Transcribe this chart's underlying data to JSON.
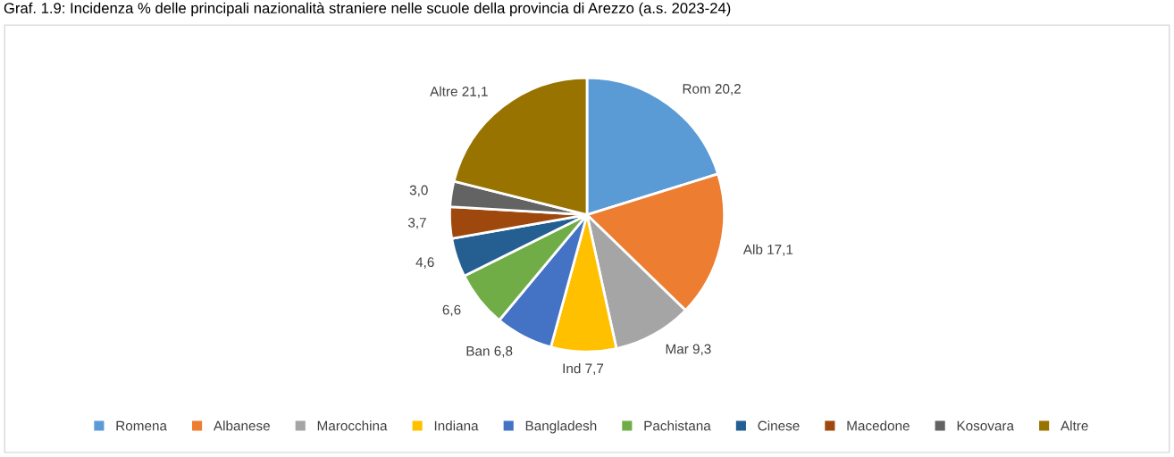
{
  "chart_data": {
    "type": "pie",
    "title": "Graf. 1.9: Incidenza % delle principali nazionalità straniere nelle scuole della provincia di Arezzo (a.s. 2023-24)",
    "categories": [
      "Romena",
      "Albanese",
      "Marocchina",
      "Indiana",
      "Bangladesh",
      "Pachistana",
      "Cinese",
      "Macedone",
      "Kosovara",
      "Altre"
    ],
    "values": [
      20.2,
      17.1,
      9.3,
      7.7,
      6.8,
      6.6,
      4.6,
      3.7,
      3.0,
      21.1
    ],
    "colors": [
      "#5b9bd5",
      "#ed7d31",
      "#a5a5a5",
      "#ffc000",
      "#4472c4",
      "#70ad47",
      "#255e91",
      "#9e480e",
      "#636363",
      "#997300"
    ],
    "value_labels": [
      "Rom 20,2",
      "Alb 17,1",
      "Mar 9,3",
      "Ind 7,7",
      "Ban 6,8",
      "6,6",
      "4,6",
      "3,7",
      "3,0",
      "Altre 21,1"
    ],
    "legend": "bottom"
  }
}
